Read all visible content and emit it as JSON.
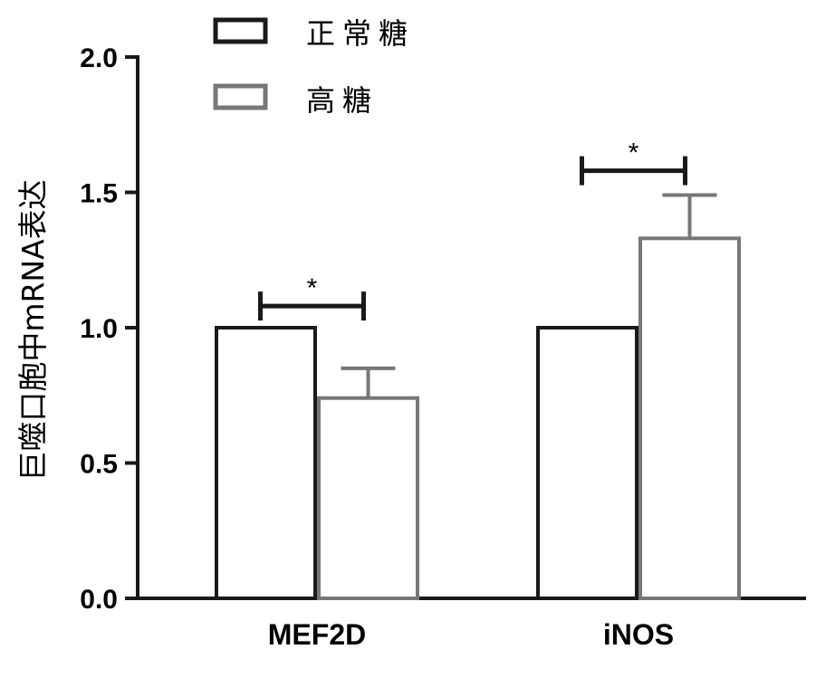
{
  "chart_data": {
    "type": "bar",
    "title": "",
    "xlabel": "",
    "ylabel": "巨噬口胞中mRNA表达",
    "ylim": [
      0,
      2.0
    ],
    "yticks": [
      "0.0",
      "0.5",
      "1.0",
      "1.5",
      "2.0"
    ],
    "categories": [
      "MEF2D",
      "iNOS"
    ],
    "series": [
      {
        "name": "正常糖",
        "color": "#1a1a1a",
        "values": [
          1.0,
          1.0
        ],
        "errors": [
          0,
          0
        ]
      },
      {
        "name": "高糖",
        "color": "#777777",
        "values": [
          0.74,
          1.33
        ],
        "errors": [
          0.11,
          0.16
        ]
      }
    ],
    "legend_position": "top-left",
    "grid": false,
    "annotations": [
      {
        "category": "MEF2D",
        "text": "*",
        "level": 1.08
      },
      {
        "category": "iNOS",
        "text": "*",
        "level": 1.58
      }
    ]
  }
}
